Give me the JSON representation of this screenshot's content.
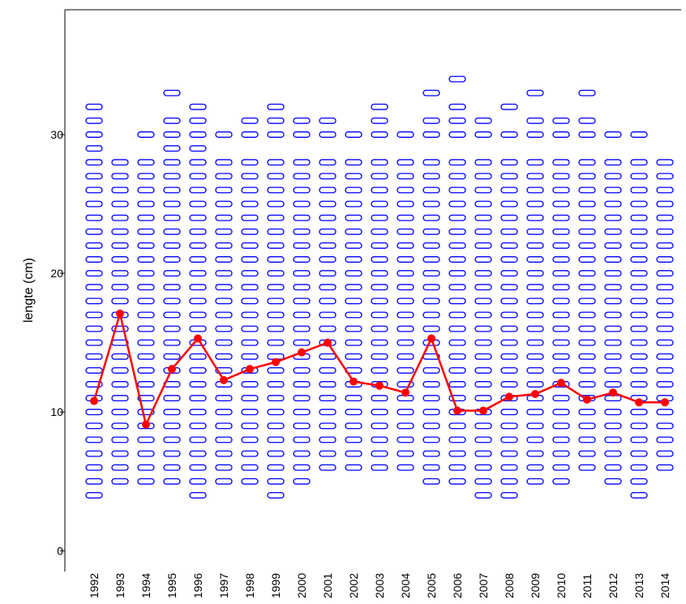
{
  "chart_data": {
    "type": "scatter",
    "y_label": "lengte (cm)",
    "categories": [
      "1992",
      "1993",
      "1994",
      "1995",
      "1996",
      "1997",
      "1998",
      "1999",
      "2000",
      "2001",
      "2002",
      "2003",
      "2004",
      "2005",
      "2006",
      "2007",
      "2008",
      "2009",
      "2010",
      "2011",
      "2012",
      "2013",
      "2014"
    ],
    "ylim": [
      -1.5,
      39
    ],
    "yticks": [
      0,
      10,
      20,
      30
    ],
    "point_color": "#0000ff",
    "line_color": "#ff0000",
    "points": [
      [
        4,
        5,
        6,
        7,
        8,
        9,
        10,
        11,
        12,
        13,
        14,
        15,
        16,
        17,
        18,
        19,
        20,
        21,
        22,
        23,
        24,
        25,
        26,
        27,
        28,
        29,
        30,
        31,
        32
      ],
      [
        5,
        6,
        7,
        8,
        9,
        10,
        11,
        12,
        13,
        14,
        15,
        16,
        17,
        18,
        19,
        20,
        21,
        22,
        23,
        24,
        25,
        26,
        27,
        28
      ],
      [
        5,
        6,
        7,
        8,
        9,
        10,
        11,
        12,
        13,
        14,
        15,
        16,
        17,
        18,
        19,
        20,
        21,
        22,
        23,
        24,
        25,
        26,
        27,
        28,
        30
      ],
      [
        5,
        6,
        7,
        8,
        9,
        10,
        11,
        12,
        13,
        14,
        15,
        16,
        17,
        18,
        19,
        20,
        21,
        22,
        23,
        24,
        25,
        26,
        27,
        28,
        29,
        30,
        31,
        33
      ],
      [
        4,
        5,
        6,
        7,
        8,
        9,
        10,
        11,
        12,
        13,
        14,
        15,
        16,
        17,
        18,
        19,
        20,
        21,
        22,
        23,
        24,
        25,
        26,
        27,
        28,
        29,
        30,
        31,
        32
      ],
      [
        5,
        6,
        7,
        8,
        9,
        10,
        11,
        12,
        13,
        14,
        15,
        16,
        17,
        18,
        19,
        20,
        21,
        22,
        23,
        24,
        25,
        26,
        27,
        28,
        30
      ],
      [
        5,
        6,
        7,
        8,
        9,
        10,
        11,
        12,
        13,
        14,
        15,
        16,
        17,
        18,
        19,
        20,
        21,
        22,
        23,
        24,
        25,
        26,
        27,
        28,
        30,
        31
      ],
      [
        4,
        5,
        6,
        7,
        8,
        9,
        10,
        11,
        12,
        13,
        14,
        15,
        16,
        17,
        18,
        19,
        20,
        21,
        22,
        23,
        24,
        25,
        26,
        27,
        28,
        30,
        31,
        32
      ],
      [
        5,
        6,
        7,
        8,
        9,
        10,
        11,
        12,
        13,
        14,
        15,
        16,
        17,
        18,
        19,
        20,
        21,
        22,
        23,
        24,
        25,
        26,
        27,
        28,
        30,
        31
      ],
      [
        6,
        7,
        8,
        9,
        10,
        11,
        12,
        13,
        14,
        15,
        16,
        17,
        18,
        19,
        20,
        21,
        22,
        23,
        24,
        25,
        26,
        27,
        28,
        30,
        31
      ],
      [
        6,
        7,
        8,
        9,
        10,
        11,
        12,
        13,
        14,
        15,
        16,
        17,
        18,
        19,
        20,
        21,
        22,
        23,
        24,
        25,
        26,
        27,
        28,
        30
      ],
      [
        6,
        7,
        8,
        9,
        10,
        11,
        12,
        13,
        14,
        15,
        16,
        17,
        18,
        19,
        20,
        21,
        22,
        23,
        24,
        25,
        26,
        27,
        28,
        30,
        31,
        32
      ],
      [
        6,
        7,
        8,
        9,
        10,
        11,
        12,
        13,
        14,
        15,
        16,
        17,
        18,
        19,
        20,
        21,
        22,
        23,
        24,
        25,
        26,
        27,
        28,
        30
      ],
      [
        5,
        6,
        7,
        8,
        9,
        10,
        11,
        12,
        13,
        14,
        15,
        16,
        17,
        18,
        19,
        20,
        21,
        22,
        23,
        24,
        25,
        26,
        27,
        28,
        30,
        31,
        33
      ],
      [
        5,
        6,
        7,
        8,
        9,
        10,
        11,
        12,
        13,
        14,
        15,
        16,
        17,
        18,
        19,
        20,
        21,
        22,
        23,
        24,
        25,
        26,
        27,
        28,
        30,
        31,
        32,
        34
      ],
      [
        4,
        5,
        6,
        7,
        8,
        9,
        10,
        11,
        12,
        13,
        14,
        15,
        16,
        17,
        18,
        19,
        20,
        21,
        22,
        23,
        24,
        25,
        26,
        27,
        28,
        30,
        31
      ],
      [
        4,
        5,
        6,
        7,
        8,
        9,
        10,
        11,
        12,
        13,
        14,
        15,
        16,
        17,
        18,
        19,
        20,
        21,
        22,
        23,
        24,
        25,
        26,
        27,
        28,
        30,
        32
      ],
      [
        5,
        6,
        7,
        8,
        9,
        10,
        11,
        12,
        13,
        14,
        15,
        16,
        17,
        18,
        19,
        20,
        21,
        22,
        23,
        24,
        25,
        26,
        27,
        28,
        30,
        31,
        33
      ],
      [
        5,
        6,
        7,
        8,
        9,
        10,
        11,
        12,
        13,
        14,
        15,
        16,
        17,
        18,
        19,
        20,
        21,
        22,
        23,
        24,
        25,
        26,
        27,
        28,
        30,
        31
      ],
      [
        6,
        7,
        8,
        9,
        10,
        11,
        12,
        13,
        14,
        15,
        16,
        17,
        18,
        19,
        20,
        21,
        22,
        23,
        24,
        25,
        26,
        27,
        28,
        30,
        31,
        33
      ],
      [
        5,
        6,
        7,
        8,
        9,
        10,
        11,
        12,
        13,
        14,
        15,
        16,
        17,
        18,
        19,
        20,
        21,
        22,
        23,
        24,
        25,
        26,
        27,
        28,
        30
      ],
      [
        4,
        5,
        6,
        7,
        8,
        9,
        10,
        11,
        12,
        13,
        14,
        15,
        16,
        17,
        18,
        19,
        20,
        21,
        22,
        23,
        24,
        25,
        26,
        27,
        28,
        30
      ],
      [
        6,
        7,
        8,
        9,
        10,
        11,
        12,
        13,
        14,
        15,
        16,
        17,
        18,
        19,
        20,
        21,
        22,
        23,
        24,
        25,
        26,
        27,
        28
      ]
    ],
    "means": [
      10.8,
      17.1,
      9.1,
      13.1,
      15.3,
      12.3,
      13.1,
      13.6,
      14.3,
      15.0,
      12.2,
      11.9,
      11.4,
      15.3,
      10.1,
      10.1,
      11.1,
      11.3,
      12.1,
      10.9,
      11.4,
      10.7,
      10.7
    ]
  }
}
